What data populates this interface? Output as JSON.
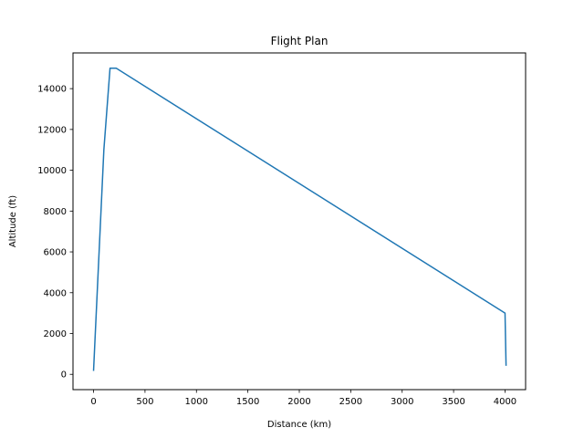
{
  "chart_data": {
    "type": "line",
    "title": "Flight Plan",
    "xlabel": "Distance (km)",
    "ylabel": "Altitude (ft)",
    "xlim": [
      -200,
      4200
    ],
    "ylim": [
      -750,
      15750
    ],
    "xticks": [
      0,
      500,
      1000,
      1500,
      2000,
      2500,
      3000,
      3500,
      4000
    ],
    "yticks": [
      0,
      2000,
      4000,
      6000,
      8000,
      10000,
      12000,
      14000
    ],
    "grid": false,
    "series": [
      {
        "color": "#1f77b4",
        "x": [
          0,
          100,
          160,
          220,
          4000,
          4010
        ],
        "y": [
          200,
          11000,
          15000,
          15000,
          3000,
          450
        ]
      }
    ]
  }
}
